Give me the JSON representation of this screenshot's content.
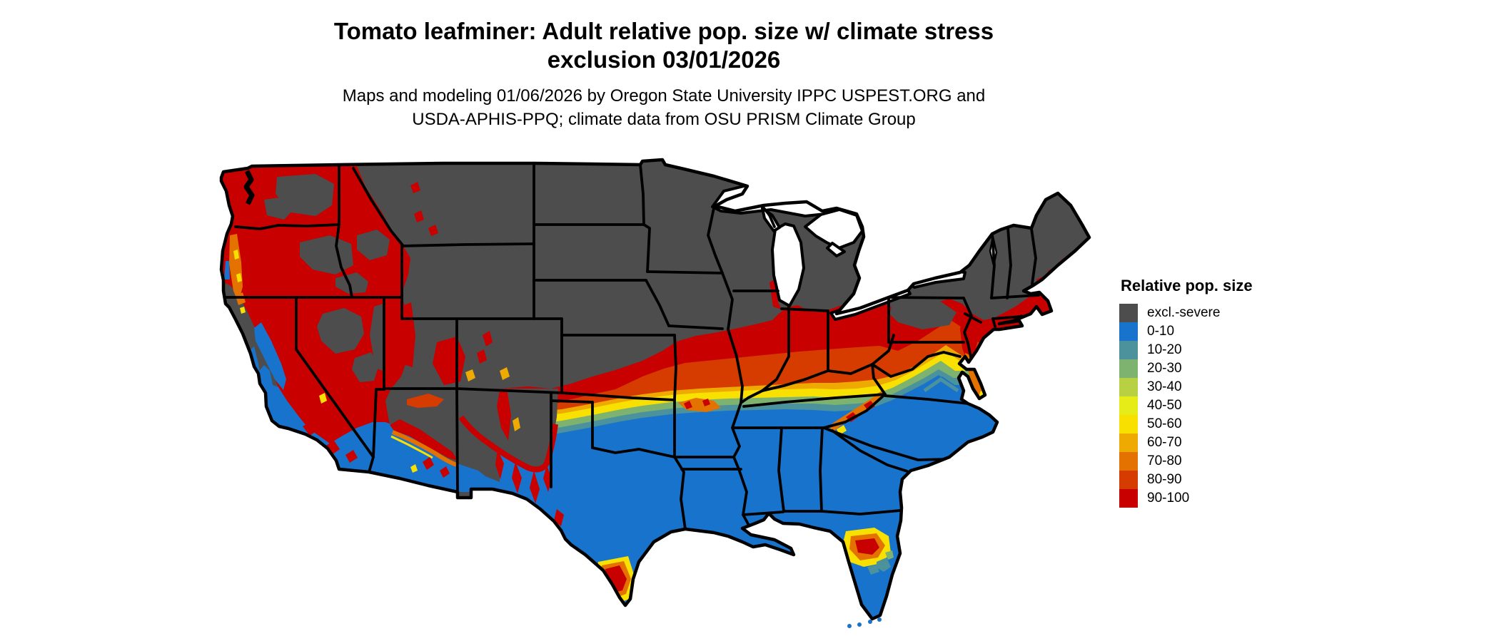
{
  "title": {
    "line1": "Tomato leafminer: Adult relative pop. size w/ climate stress",
    "line2": "exclusion 03/01/2026"
  },
  "subtitle": {
    "line1": "Maps and modeling 01/06/2026 by Oregon State University IPPC USPEST.ORG and",
    "line2": "USDA-APHIS-PPQ; climate data from OSU PRISM Climate Group"
  },
  "map": {
    "background_color": "#ffffff",
    "boundary_color": "#000000",
    "excluded_color": "#4d4d4d"
  },
  "legend": {
    "title": "Relative pop. size",
    "items": [
      {
        "label": "excl.-severe",
        "color": "#4d4d4d"
      },
      {
        "label": "0-10",
        "color": "#1873cc"
      },
      {
        "label": "10-20",
        "color": "#4b929c"
      },
      {
        "label": "20-30",
        "color": "#7db36e"
      },
      {
        "label": "30-40",
        "color": "#b7d143"
      },
      {
        "label": "40-50",
        "color": "#e5ec18"
      },
      {
        "label": "50-60",
        "color": "#f8e000"
      },
      {
        "label": "60-70",
        "color": "#eeaa00"
      },
      {
        "label": "70-80",
        "color": "#e37200"
      },
      {
        "label": "80-90",
        "color": "#d63c00"
      },
      {
        "label": "90-100",
        "color": "#c80000"
      }
    ]
  }
}
